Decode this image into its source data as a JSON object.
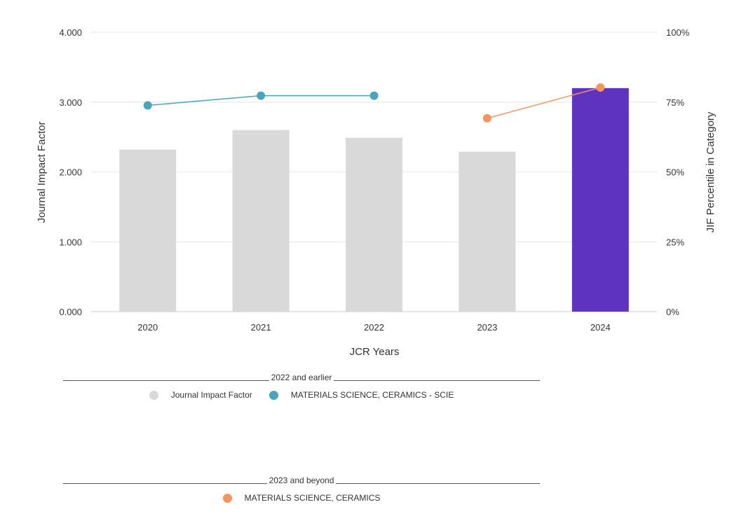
{
  "chart_data": {
    "type": "bar",
    "categories": [
      "2020",
      "2021",
      "2022",
      "2023",
      "2024"
    ],
    "x_axis_title": "JCR Years",
    "y_left": {
      "title": "Journal Impact Factor",
      "range": [
        0,
        4
      ],
      "ticks": [
        "0.000",
        "1.000",
        "2.000",
        "3.000",
        "4.000"
      ]
    },
    "y_right": {
      "title": "JIF Percentile in Category",
      "range": [
        0,
        100
      ],
      "ticks": [
        "0%",
        "25%",
        "50%",
        "75%",
        "100%"
      ]
    },
    "bars": {
      "name": "Journal Impact Factor",
      "values": [
        2.32,
        2.6,
        2.49,
        2.29,
        3.2
      ],
      "colors": [
        "#d9d9d9",
        "#d9d9d9",
        "#d9d9d9",
        "#d9d9d9",
        "#5e33bf"
      ]
    },
    "lines": [
      {
        "name": "MATERIALS SCIENCE, CERAMICS - SCIE",
        "color": "#4aa5b8",
        "points": [
          {
            "x": "2020",
            "y": 73.8
          },
          {
            "x": "2021",
            "y": 77.3
          },
          {
            "x": "2022",
            "y": 77.3
          }
        ]
      },
      {
        "name": "MATERIALS SCIENCE, CERAMICS",
        "color": "#f4955f",
        "points": [
          {
            "x": "2023",
            "y": 69.2
          },
          {
            "x": "2024",
            "y": 80.2
          }
        ]
      }
    ],
    "grid": true
  },
  "legend": {
    "group1": {
      "header": "2022 and earlier",
      "items": [
        {
          "label": "Journal Impact Factor",
          "color": "#d9d9d9"
        },
        {
          "label": "MATERIALS SCIENCE, CERAMICS - SCIE",
          "color": "#4aa5b8"
        }
      ]
    },
    "group2": {
      "header": "2023 and beyond",
      "items": [
        {
          "label": "MATERIALS SCIENCE, CERAMICS",
          "color": "#f4955f"
        }
      ]
    }
  }
}
